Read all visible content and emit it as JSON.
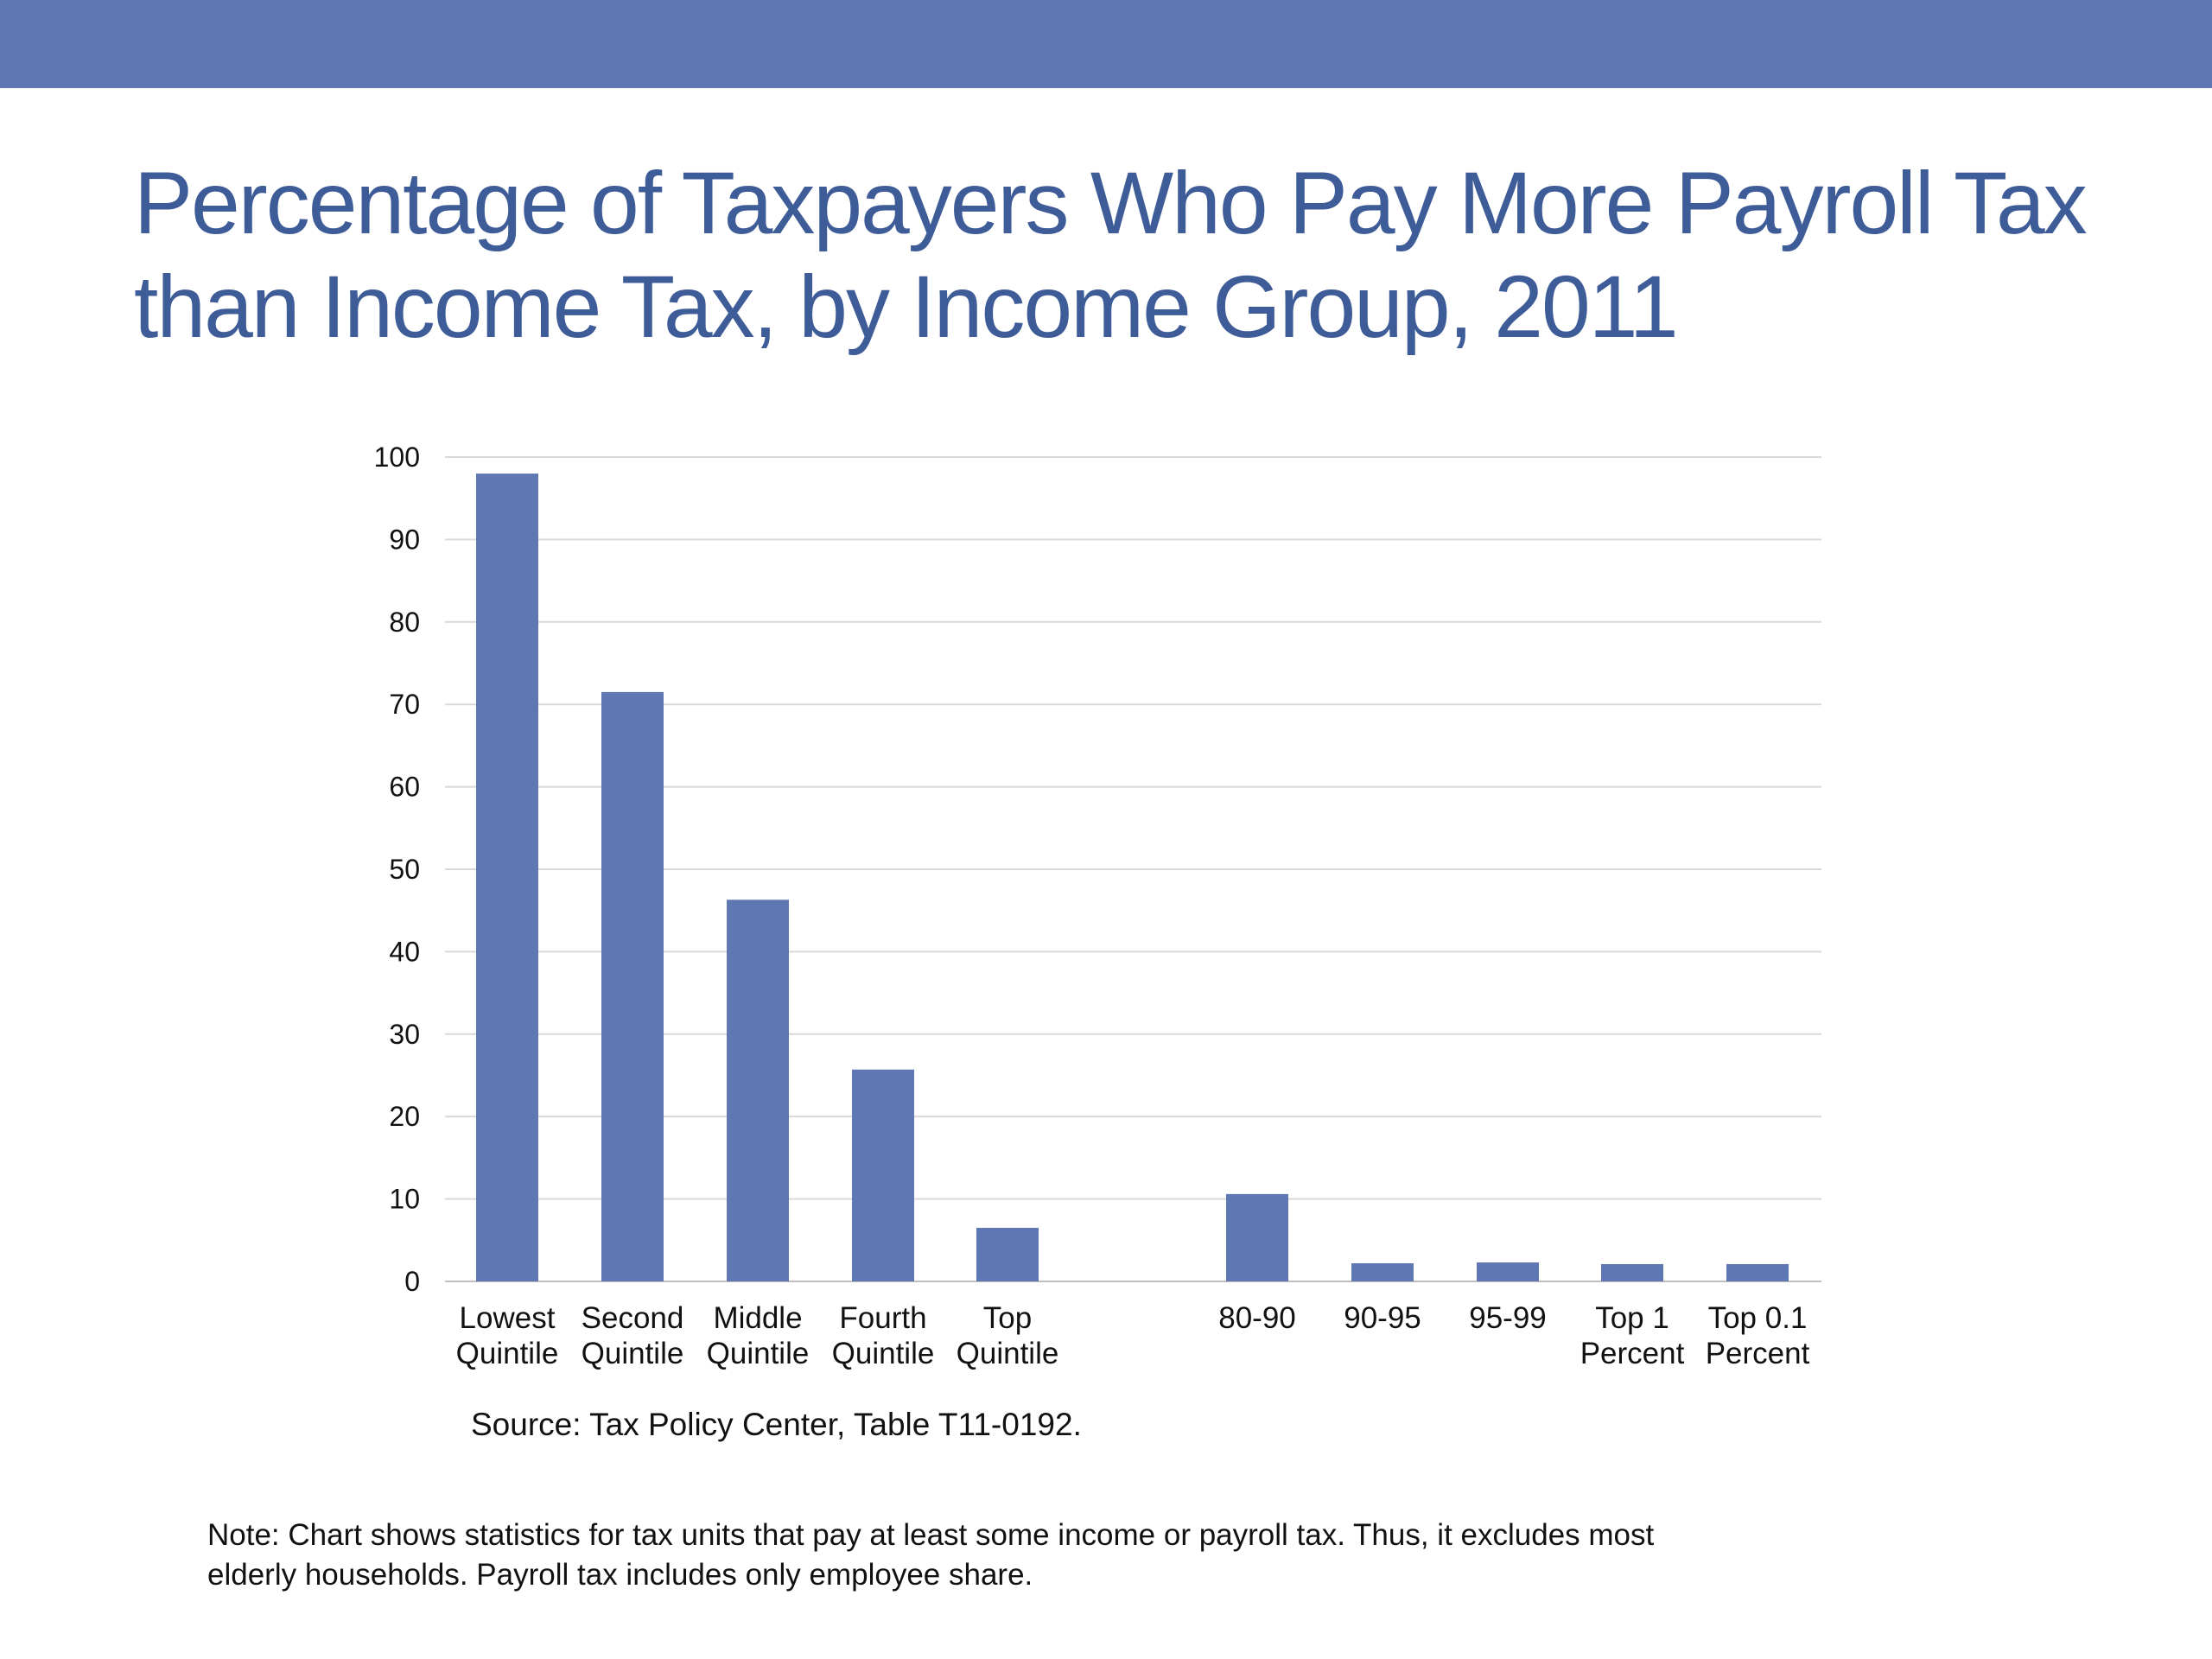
{
  "title_lines": [
    "Percentage of Taxpayers Who Pay More Payroll Tax",
    "than Income Tax, by Income Group, 2011"
  ],
  "source": "Source: Tax Policy Center, Table T11-0192.",
  "note_lines": [
    "Note:  Chart shows statistics for tax units that pay at least some income or payroll tax.  Thus, it excludes most",
    "elderly households. Payroll tax includes only employee share."
  ],
  "colors": {
    "band": "#5f78b4",
    "title": "#3e5c98",
    "bar": "#5f78b4",
    "grid": "#d9d9d9"
  },
  "chart_data": {
    "type": "bar",
    "title": "Percentage of Taxpayers Who Pay More Payroll Tax than Income Tax, by Income Group, 2011",
    "categories": [
      [
        "Lowest",
        "Quintile"
      ],
      [
        "Second",
        "Quintile"
      ],
      [
        "Middle",
        "Quintile"
      ],
      [
        "Fourth",
        "Quintile"
      ],
      [
        "Top",
        "Quintile"
      ],
      [
        "80-90"
      ],
      [
        "90-95"
      ],
      [
        "95-99"
      ],
      [
        "Top 1",
        "Percent"
      ],
      [
        "Top 0.1",
        "Percent"
      ]
    ],
    "values": [
      98,
      71.5,
      46.3,
      25.7,
      6.5,
      10.6,
      2.2,
      2.3,
      2.1,
      2.1
    ],
    "ylim": [
      0,
      100
    ],
    "yticks": [
      0,
      10,
      20,
      30,
      40,
      50,
      60,
      70,
      80,
      90,
      100
    ],
    "xlabel": "",
    "ylabel": "",
    "grid": true,
    "legend": "none"
  }
}
